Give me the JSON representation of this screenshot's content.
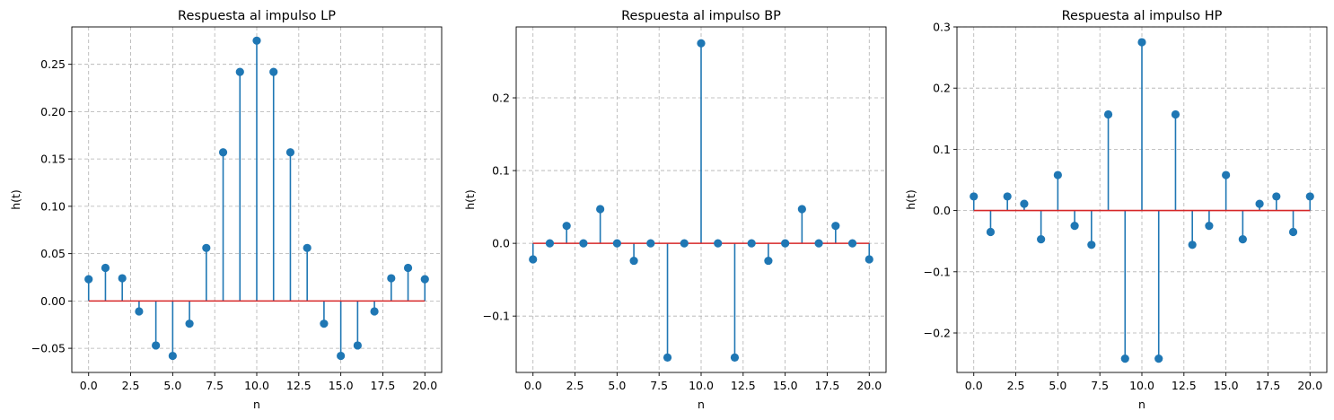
{
  "colors": {
    "stem": "#1f77b4",
    "baseline": "#d62728"
  },
  "chart_data": [
    {
      "type": "stem",
      "title": "Respuesta al impulso LP",
      "xlabel": "n",
      "ylabel": "h(t)",
      "xlim": [
        -1.0,
        21.0
      ],
      "ylim": [
        -0.0755,
        0.2895
      ],
      "grid": true,
      "xticks": [
        0.0,
        2.5,
        5.0,
        7.5,
        10.0,
        12.5,
        15.0,
        17.5,
        20.0
      ],
      "xtick_labels": [
        "0.0",
        "2.5",
        "5.0",
        "7.5",
        "10.0",
        "12.5",
        "15.0",
        "17.5",
        "20.0"
      ],
      "yticks": [
        -0.05,
        0.0,
        0.05,
        0.1,
        0.15,
        0.2,
        0.25
      ],
      "ytick_labels": [
        "−0.05",
        "0.00",
        "0.05",
        "0.10",
        "0.15",
        "0.20",
        "0.25"
      ],
      "x": [
        0,
        1,
        2,
        3,
        4,
        5,
        6,
        7,
        8,
        9,
        10,
        11,
        12,
        13,
        14,
        15,
        16,
        17,
        18,
        19,
        20
      ],
      "y": [
        0.023,
        0.035,
        0.024,
        -0.011,
        -0.047,
        -0.058,
        -0.024,
        0.056,
        0.157,
        0.242,
        0.275,
        0.242,
        0.157,
        0.056,
        -0.024,
        -0.058,
        -0.047,
        -0.011,
        0.024,
        0.035,
        0.023
      ]
    },
    {
      "type": "stem",
      "title": "Respuesta al impulso BP",
      "xlabel": "n",
      "ylabel": "h(t)",
      "xlim": [
        -1.0,
        21.0
      ],
      "ylim": [
        -0.1775,
        0.2975
      ],
      "grid": true,
      "xticks": [
        0.0,
        2.5,
        5.0,
        7.5,
        10.0,
        12.5,
        15.0,
        17.5,
        20.0
      ],
      "xtick_labels": [
        "0.0",
        "2.5",
        "5.0",
        "7.5",
        "10.0",
        "12.5",
        "15.0",
        "17.5",
        "20.0"
      ],
      "yticks": [
        -0.1,
        0.0,
        0.1,
        0.2
      ],
      "ytick_labels": [
        "−0.1",
        "0.0",
        "0.1",
        "0.2"
      ],
      "x": [
        0,
        1,
        2,
        3,
        4,
        5,
        6,
        7,
        8,
        9,
        10,
        11,
        12,
        13,
        14,
        15,
        16,
        17,
        18,
        19,
        20
      ],
      "y": [
        -0.022,
        0.0,
        0.024,
        0.0,
        0.047,
        0.0,
        -0.024,
        0.0,
        -0.157,
        0.0,
        0.275,
        0.0,
        -0.157,
        0.0,
        -0.024,
        0.0,
        0.047,
        0.0,
        0.024,
        0.0,
        -0.022
      ]
    },
    {
      "type": "stem",
      "title": "Respuesta al impulso HP",
      "xlabel": "n",
      "ylabel": "h(t)",
      "xlim": [
        -1.0,
        21.0
      ],
      "ylim": [
        -0.2645,
        0.3
      ],
      "grid": true,
      "xticks": [
        0.0,
        2.5,
        5.0,
        7.5,
        10.0,
        12.5,
        15.0,
        17.5,
        20.0
      ],
      "xtick_labels": [
        "0.0",
        "2.5",
        "5.0",
        "7.5",
        "10.0",
        "12.5",
        "15.0",
        "17.5",
        "20.0"
      ],
      "yticks": [
        -0.2,
        -0.1,
        0.0,
        0.1,
        0.2,
        0.3
      ],
      "ytick_labels": [
        "−0.2",
        "−0.1",
        "0.0",
        "0.1",
        "0.2",
        "0.3"
      ],
      "x": [
        0,
        1,
        2,
        3,
        4,
        5,
        6,
        7,
        8,
        9,
        10,
        11,
        12,
        13,
        14,
        15,
        16,
        17,
        18,
        19,
        20
      ],
      "y": [
        0.023,
        -0.035,
        0.023,
        0.011,
        -0.047,
        0.058,
        -0.025,
        -0.056,
        0.157,
        -0.242,
        0.275,
        -0.242,
        0.157,
        -0.056,
        -0.025,
        0.058,
        -0.047,
        0.011,
        0.023,
        -0.035,
        0.023
      ]
    }
  ]
}
